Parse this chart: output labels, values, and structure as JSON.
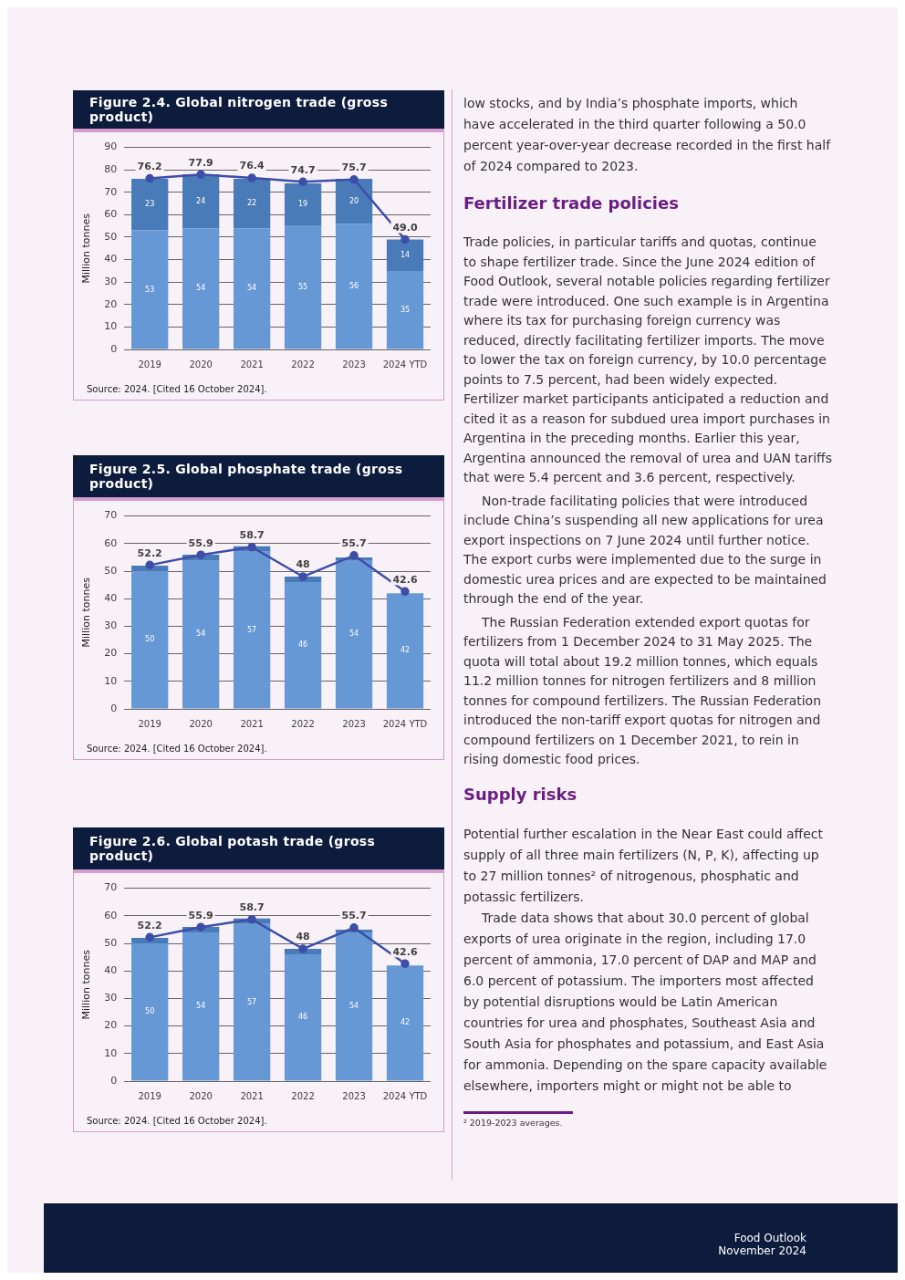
{
  "chart_data": [
    {
      "type": "bar",
      "title": "Figure 2.4. Global nitrogen trade (gross product)",
      "categories": [
        "2019",
        "2020",
        "2021",
        "2022",
        "2023",
        "2024 YTD"
      ],
      "stacked": true,
      "ylabel": "Million tonnes",
      "ylim": [
        0,
        90
      ],
      "yticks": [
        0,
        10,
        20,
        30,
        40,
        50,
        60,
        70,
        80,
        90
      ],
      "grid": "y",
      "marker": "circle",
      "annotations": [
        "Source: 2024. [Cited 16 October 2024]."
      ],
      "series": [
        {
          "color": "#6698d6",
          "values": [
            53,
            54,
            54,
            55,
            56,
            35
          ],
          "value_labels": [
            "53",
            "54",
            "54",
            "55",
            "56",
            "35"
          ]
        },
        {
          "color": "#4a7bb9",
          "values": [
            23,
            24,
            22,
            19,
            20,
            14
          ],
          "value_labels": [
            "23",
            "24",
            "22",
            "19",
            "20",
            "14"
          ]
        },
        {
          "type": "line",
          "color": "#3d4ea8",
          "values": [
            76.2,
            77.9,
            76.4,
            74.7,
            75.7,
            49.0
          ],
          "value_labels": [
            "76.2",
            "77.9",
            "76.4",
            "74.7",
            "75.7",
            "49.0"
          ]
        }
      ]
    },
    {
      "type": "bar",
      "title": "Figure 2.5. Global phosphate trade (gross product)",
      "categories": [
        "2019",
        "2020",
        "2021",
        "2022",
        "2023",
        "2024 YTD"
      ],
      "stacked": true,
      "ylabel": "Million tonnes",
      "ylim": [
        0,
        70
      ],
      "yticks": [
        0,
        10,
        20,
        30,
        40,
        50,
        60,
        70
      ],
      "grid": "y",
      "marker": "circle",
      "annotations": [
        "Source: 2024. [Cited 16 October 2024]."
      ],
      "series": [
        {
          "color": "#6698d6",
          "values": [
            50,
            54,
            57,
            46,
            54,
            42
          ],
          "value_labels": [
            "50",
            "54",
            "57",
            "46",
            "54",
            "42"
          ]
        },
        {
          "color": "#4a7bb9",
          "values": [
            2,
            2,
            2,
            2,
            1,
            null
          ]
        },
        {
          "type": "line",
          "color": "#3d4ea8",
          "values": [
            52.2,
            55.9,
            58.7,
            48,
            55.7,
            42.6
          ],
          "value_labels": [
            "52.2",
            "55.9",
            "58.7",
            "48",
            "55.7",
            "42.6"
          ]
        }
      ]
    },
    {
      "type": "bar",
      "title": "Figure 2.6. Global potash trade (gross product)",
      "categories": [
        "2019",
        "2020",
        "2021",
        "2022",
        "2023",
        "2024 YTD"
      ],
      "stacked": true,
      "ylabel": "Million tonnes",
      "ylim": [
        0,
        70
      ],
      "yticks": [
        0,
        10,
        20,
        30,
        40,
        50,
        60,
        70
      ],
      "grid": "y",
      "marker": "circle",
      "annotations": [
        "Source: 2024. [Cited 16 October 2024]."
      ],
      "series": [
        {
          "color": "#6698d6",
          "values": [
            50,
            54,
            57,
            46,
            54,
            42
          ],
          "value_labels": [
            "50",
            "54",
            "57",
            "46",
            "54",
            "42"
          ]
        },
        {
          "color": "#4a7bb9",
          "values": [
            2,
            2,
            2,
            2,
            1,
            null
          ]
        },
        {
          "type": "line",
          "color": "#3d4ea8",
          "values": [
            52.2,
            55.9,
            58.7,
            48,
            55.7,
            42.6
          ],
          "value_labels": [
            "52.2",
            "55.9",
            "58.7",
            "48",
            "55.7",
            "42.6"
          ]
        }
      ]
    },
    {
      "type": "other",
      "annotations": [
        "low stocks, and by India’s phosphate imports, which have accelerated in the third quarter following a 50.0 percent year-over-year decrease recorded in the first half of 2024 compared to 2023."
      ]
    },
    {
      "type": "other",
      "title": "Fertilizer trade policies",
      "annotations": [
        "Trade policies, in particular tariffs and quotas, continue to shape fertilizer trade. Since the June 2024 edition of Food Outlook, several notable policies regarding fertilizer trade were introduced. One such example is in Argentina where its tax for purchasing foreign currency was reduced, directly facilitating fertilizer imports. The move to lower the tax on foreign currency, by 10.0 percentage points to 7.5 percent, had been widely expected. Fertilizer market participants anticipated a reduction and cited it as a reason for subdued urea import purchases in Argentina in the preceding months. Earlier this year, Argentina announced the removal of urea and UAN tariffs that were 5.4 percent and 3.6 percent, respectively.",
        "Non-trade facilitating policies that were introduced include China’s suspending all new applications for urea export inspections on 7 June 2024 until further notice. The export curbs were implemented due to the surge in domestic urea prices and are expected to be maintained through the end of the year.",
        "The Russian Federation extended export quotas for fertilizers from 1 December 2024 to 31 May 2025. The quota will total about 19.2 million tonnes, which equals 11.2 million tonnes for nitrogen fertilizers and 8 million tonnes for compound fertilizers. The Russian Federation introduced the non-tariff export quotas for nitrogen and compound fertilizers on 1 December 2021, to rein in rising domestic food prices."
      ]
    },
    {
      "type": "other",
      "title": "Supply risks",
      "annotations": [
        "Potential further escalation in the Near East could affect supply of all three main fertilizers (N, P, K), affecting up to 27 million tonnes² of nitrogenous, phosphatic and potassic fertilizers.",
        "Trade data shows that about 30.0 percent of global exports of urea originate in the region, including 17.0 percent of ammonia, 17.0 percent of DAP and MAP and 6.0 percent of potassium. The importers most affected by potential disruptions would be Latin American countries for urea and phosphates, Southeast Asia and South Asia for phosphates and potassium, and East Asia for ammonia. Depending on the spare capacity available elsewhere, importers might or might not be able to"
      ]
    },
    {
      "type": "other",
      "annotations": [
        "² 2019-2023 averages."
      ]
    },
    {
      "type": "other",
      "annotations": [
        "Food Outlook",
        "November 2024"
      ]
    }
  ]
}
